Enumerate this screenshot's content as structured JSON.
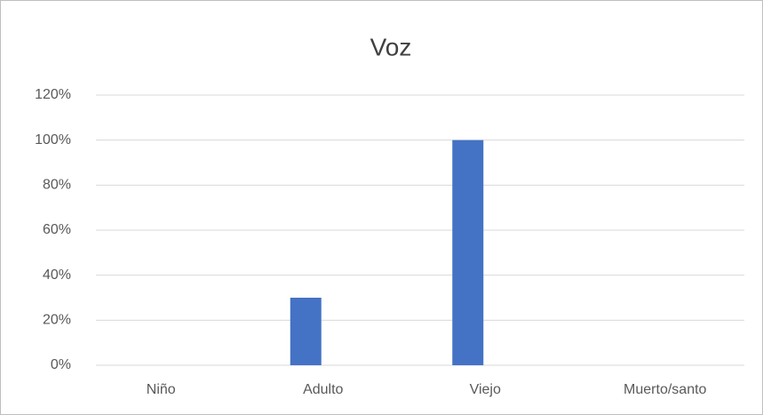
{
  "chart_data": {
    "type": "bar",
    "title": "Voz",
    "categories": [
      "Niño",
      "Adulto",
      "Viejo",
      "Muerto/santo"
    ],
    "values": [
      0,
      30,
      100,
      0
    ],
    "color": "#4472c4",
    "ylim": [
      0,
      120
    ],
    "yticks": [
      {
        "value": 0,
        "label": "0%"
      },
      {
        "value": 20,
        "label": "20%"
      },
      {
        "value": 40,
        "label": "40%"
      },
      {
        "value": 60,
        "label": "60%"
      },
      {
        "value": 80,
        "label": "80%"
      },
      {
        "value": 100,
        "label": "100%"
      },
      {
        "value": 120,
        "label": "120%"
      }
    ],
    "grid": true
  }
}
